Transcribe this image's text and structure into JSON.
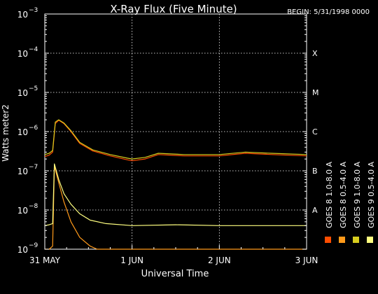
{
  "chart_data": {
    "type": "line",
    "title": "X-Ray Flux (Five Minute)",
    "begin_label": "BEGIN: 5/31/1998 0000",
    "xlabel": "Universal Time",
    "ylabel": "Watts meter2",
    "x_ticks": [
      "31 MAY",
      "1 JUN",
      "2 JUN",
      "3 JUN"
    ],
    "x_range_days": [
      0,
      3
    ],
    "y_scale": "log",
    "y_ticks": [
      {
        "base": "10",
        "exp": "-3",
        "value": 0.001
      },
      {
        "base": "10",
        "exp": "-4",
        "value": 0.0001
      },
      {
        "base": "10",
        "exp": "-5",
        "value": 1e-05
      },
      {
        "base": "10",
        "exp": "-6",
        "value": 1e-06
      },
      {
        "base": "10",
        "exp": "-7",
        "value": 1e-07
      },
      {
        "base": "10",
        "exp": "-8",
        "value": 1e-08
      },
      {
        "base": "10",
        "exp": "-9",
        "value": 1e-09
      }
    ],
    "ylim": [
      1e-09,
      0.001
    ],
    "grid": true,
    "flare_classes": [
      {
        "label": "X",
        "value": 0.0001
      },
      {
        "label": "M",
        "value": 1e-05
      },
      {
        "label": "C",
        "value": 1e-06
      },
      {
        "label": "B",
        "value": 1e-07
      },
      {
        "label": "A",
        "value": 1e-08
      }
    ],
    "legend_position": "right",
    "series": [
      {
        "name": "GOES 8 1.0-8.0 A",
        "color": "#ff4d00",
        "x": [
          0,
          0.05,
          0.09,
          0.12,
          0.16,
          0.22,
          0.3,
          0.4,
          0.55,
          0.75,
          0.95,
          1.0,
          1.15,
          1.3,
          1.6,
          2.0,
          2.3,
          2.6,
          3.0
        ],
        "y": [
          2.3e-07,
          2.5e-07,
          3e-07,
          1.6e-06,
          1.95e-06,
          1.6e-06,
          1e-06,
          5e-07,
          3.2e-07,
          2.4e-07,
          1.9e-07,
          1.8e-07,
          2e-07,
          2.6e-07,
          2.4e-07,
          2.4e-07,
          2.8e-07,
          2.6e-07,
          2.4e-07
        ]
      },
      {
        "name": "GOES 8 0.5-4.0 A",
        "color": "#ff9a1a",
        "x": [
          0,
          0.05,
          0.09,
          0.11,
          0.16,
          0.22,
          0.3,
          0.4,
          0.52,
          0.6,
          0.75,
          1.0,
          1.5,
          2.0,
          2.5,
          3.0
        ],
        "y": [
          1e-09,
          1e-09,
          1.2e-09,
          1.3e-07,
          5e-08,
          1.6e-08,
          5e-09,
          2e-09,
          1.2e-09,
          1e-09,
          1e-09,
          1e-09,
          1e-09,
          1e-09,
          1e-09,
          1e-09
        ]
      },
      {
        "name": "GOES 9 1.0-8.0 A",
        "color": "#d7cd1e",
        "x": [
          0,
          0.05,
          0.09,
          0.12,
          0.16,
          0.22,
          0.3,
          0.4,
          0.55,
          0.75,
          0.95,
          1.0,
          1.15,
          1.3,
          1.6,
          2.0,
          2.3,
          2.6,
          3.0
        ],
        "y": [
          2.6e-07,
          2.8e-07,
          3.3e-07,
          1.75e-06,
          2e-06,
          1.65e-06,
          1.05e-06,
          5.3e-07,
          3.4e-07,
          2.6e-07,
          2.1e-07,
          2e-07,
          2.2e-07,
          2.8e-07,
          2.6e-07,
          2.6e-07,
          3e-07,
          2.8e-07,
          2.6e-07
        ]
      },
      {
        "name": "GOES 9 0.5-4.0 A",
        "color": "#ffff80",
        "x": [
          0,
          0.05,
          0.09,
          0.11,
          0.16,
          0.22,
          0.3,
          0.4,
          0.52,
          0.7,
          1.0,
          1.5,
          2.0,
          2.5,
          3.0
        ],
        "y": [
          4e-09,
          4.2e-09,
          4.5e-09,
          1.5e-07,
          6e-08,
          2.6e-08,
          1.4e-08,
          8e-09,
          5.5e-09,
          4.5e-09,
          4e-09,
          4.2e-09,
          4e-09,
          4e-09,
          4e-09
        ]
      }
    ]
  }
}
